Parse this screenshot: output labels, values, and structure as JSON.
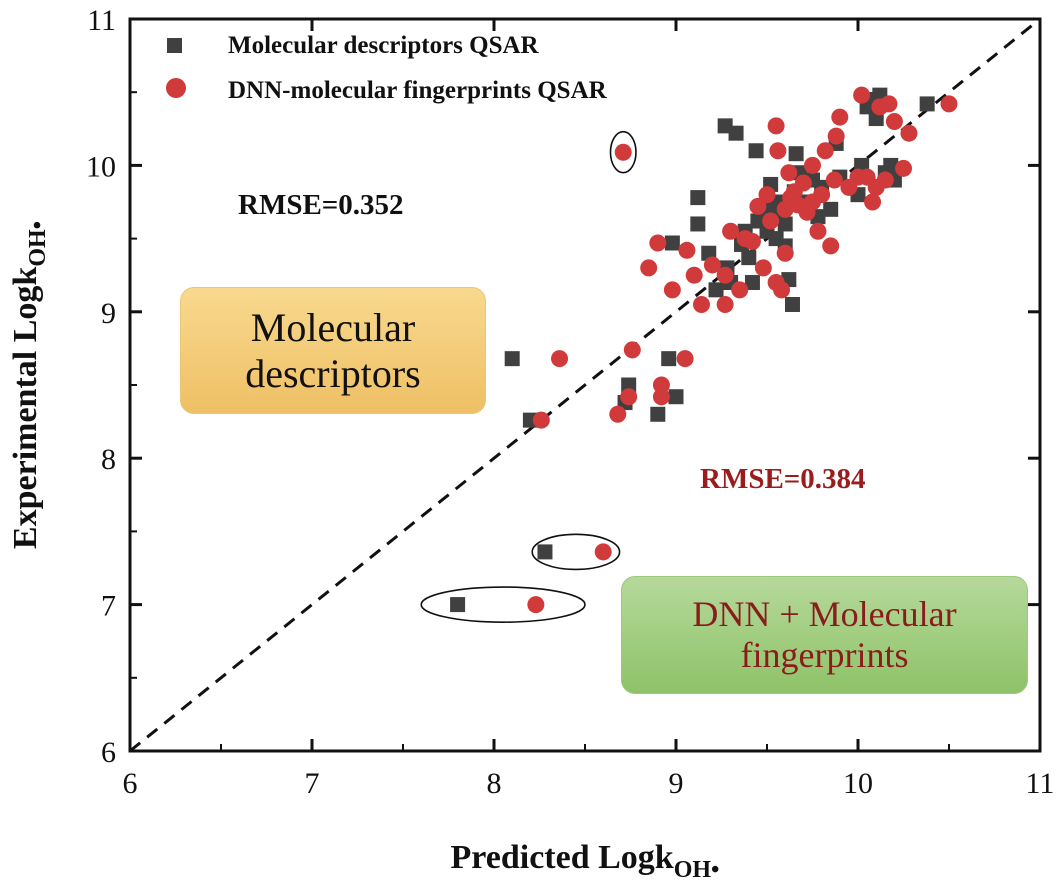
{
  "chart_data": {
    "type": "scatter",
    "xlabel": "Predicted Logk",
    "xlabel_sub": "OH•",
    "ylabel": "Experimental Logk",
    "ylabel_sub": "OH•",
    "xlim": [
      6,
      11
    ],
    "ylim": [
      6,
      11
    ],
    "xticks": [
      "6",
      "7",
      "8",
      "9",
      "10",
      "11"
    ],
    "yticks": [
      "6",
      "7",
      "8",
      "9",
      "10",
      "11"
    ],
    "reference_line": "y = x (dashed)",
    "legend_position": "top-left",
    "annotations": {
      "rmse_descriptors": "RMSE=0.352",
      "rmse_dnn": "RMSE=0.384",
      "box_descriptors": [
        "Molecular",
        "descriptors"
      ],
      "box_dnn": [
        "DNN + Molecular",
        "fingerprints"
      ]
    },
    "highlight_ellipses": [
      {
        "cx": 8.71,
        "cy": 10.09,
        "rx": 0.07,
        "ry": 0.14
      },
      {
        "cx": 8.45,
        "cy": 7.36,
        "rx": 0.24,
        "ry": 0.12
      },
      {
        "cx": 8.05,
        "cy": 7.0,
        "rx": 0.45,
        "ry": 0.12
      }
    ],
    "series": [
      {
        "name": "Molecular descriptors QSAR",
        "marker": "square",
        "color": "#404040",
        "points": [
          [
            7.8,
            7.0
          ],
          [
            8.28,
            7.36
          ],
          [
            8.1,
            8.68
          ],
          [
            8.2,
            8.26
          ],
          [
            8.74,
            8.5
          ],
          [
            8.72,
            8.38
          ],
          [
            8.9,
            8.3
          ],
          [
            8.96,
            8.68
          ],
          [
            9.0,
            8.42
          ],
          [
            8.98,
            9.47
          ],
          [
            9.12,
            9.78
          ],
          [
            9.12,
            9.6
          ],
          [
            9.18,
            9.4
          ],
          [
            9.22,
            9.15
          ],
          [
            9.27,
            10.27
          ],
          [
            9.33,
            10.22
          ],
          [
            9.28,
            9.3
          ],
          [
            9.3,
            9.2
          ],
          [
            9.36,
            9.46
          ],
          [
            9.4,
            9.37
          ],
          [
            9.42,
            9.2
          ],
          [
            9.45,
            9.62
          ],
          [
            9.5,
            9.55
          ],
          [
            9.44,
            10.1
          ],
          [
            9.5,
            9.72
          ],
          [
            9.52,
            9.87
          ],
          [
            9.55,
            9.5
          ],
          [
            9.58,
            9.66
          ],
          [
            9.6,
            9.45
          ],
          [
            9.62,
            9.22
          ],
          [
            9.64,
            9.05
          ],
          [
            9.65,
            9.82
          ],
          [
            9.66,
            10.08
          ],
          [
            9.68,
            9.95
          ],
          [
            9.72,
            9.75
          ],
          [
            9.75,
            9.9
          ],
          [
            9.78,
            9.65
          ],
          [
            9.8,
            9.85
          ],
          [
            9.85,
            9.7
          ],
          [
            9.9,
            9.92
          ],
          [
            9.88,
            10.15
          ],
          [
            10.0,
            9.8
          ],
          [
            10.02,
            10.0
          ],
          [
            10.05,
            10.4
          ],
          [
            10.08,
            10.45
          ],
          [
            10.1,
            10.32
          ],
          [
            10.12,
            10.48
          ],
          [
            10.15,
            9.95
          ],
          [
            10.18,
            10.0
          ],
          [
            10.2,
            9.9
          ],
          [
            10.38,
            10.42
          ],
          [
            9.55,
            9.75
          ],
          [
            9.6,
            9.6
          ],
          [
            9.38,
            9.55
          ]
        ]
      },
      {
        "name": "DNN-molecular fingerprints QSAR",
        "marker": "circle",
        "color": "#d13a3a",
        "points": [
          [
            8.71,
            10.09
          ],
          [
            8.6,
            7.36
          ],
          [
            8.23,
            7.0
          ],
          [
            8.26,
            8.26
          ],
          [
            8.36,
            8.68
          ],
          [
            8.68,
            8.3
          ],
          [
            8.76,
            8.74
          ],
          [
            8.74,
            8.42
          ],
          [
            8.92,
            8.5
          ],
          [
            8.92,
            8.42
          ],
          [
            9.05,
            8.68
          ],
          [
            8.85,
            9.3
          ],
          [
            8.9,
            9.47
          ],
          [
            8.98,
            9.15
          ],
          [
            9.06,
            9.42
          ],
          [
            9.1,
            9.25
          ],
          [
            9.14,
            9.05
          ],
          [
            9.2,
            9.32
          ],
          [
            9.27,
            9.25
          ],
          [
            9.27,
            9.05
          ],
          [
            9.3,
            9.55
          ],
          [
            9.35,
            9.15
          ],
          [
            9.38,
            9.5
          ],
          [
            9.45,
            9.72
          ],
          [
            9.48,
            9.3
          ],
          [
            9.5,
            9.8
          ],
          [
            9.52,
            9.62
          ],
          [
            9.55,
            9.2
          ],
          [
            9.56,
            10.1
          ],
          [
            9.58,
            9.15
          ],
          [
            9.6,
            9.4
          ],
          [
            9.6,
            9.7
          ],
          [
            9.63,
            9.78
          ],
          [
            9.65,
            9.82
          ],
          [
            9.67,
            9.73
          ],
          [
            9.7,
            9.88
          ],
          [
            9.72,
            9.68
          ],
          [
            9.75,
            10.0
          ],
          [
            9.78,
            9.55
          ],
          [
            9.8,
            9.8
          ],
          [
            9.82,
            10.1
          ],
          [
            9.85,
            9.45
          ],
          [
            9.87,
            9.9
          ],
          [
            9.9,
            10.33
          ],
          [
            9.95,
            9.85
          ],
          [
            10.0,
            9.92
          ],
          [
            10.02,
            10.48
          ],
          [
            10.05,
            9.92
          ],
          [
            10.08,
            9.75
          ],
          [
            10.1,
            9.85
          ],
          [
            10.12,
            10.4
          ],
          [
            10.15,
            9.9
          ],
          [
            10.17,
            10.42
          ],
          [
            10.2,
            10.3
          ],
          [
            10.25,
            9.98
          ],
          [
            10.28,
            10.22
          ],
          [
            10.5,
            10.42
          ],
          [
            9.55,
            10.27
          ],
          [
            9.88,
            10.2
          ],
          [
            9.75,
            9.75
          ],
          [
            9.62,
            9.95
          ],
          [
            9.42,
            9.48
          ]
        ]
      }
    ]
  }
}
